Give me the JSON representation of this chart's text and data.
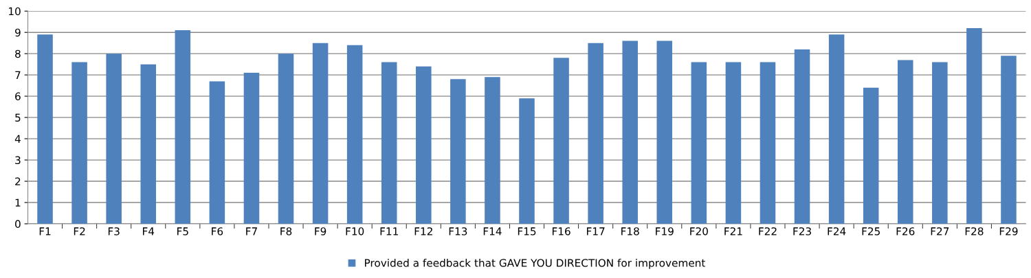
{
  "chart_data": {
    "type": "bar",
    "categories": [
      "F1",
      "F2",
      "F3",
      "F4",
      "F5",
      "F6",
      "F7",
      "F8",
      "F9",
      "F10",
      "F11",
      "F12",
      "F13",
      "F14",
      "F15",
      "F16",
      "F17",
      "F18",
      "F19",
      "F20",
      "F21",
      "F22",
      "F23",
      "F24",
      "F25",
      "F26",
      "F27",
      "F28",
      "F29"
    ],
    "series": [
      {
        "name": "Provided a feedback that GAVE YOU DIRECTION for improvement",
        "color": "#4f81bd",
        "values": [
          8.9,
          7.6,
          8.0,
          7.5,
          9.1,
          6.7,
          7.1,
          8.0,
          8.5,
          8.4,
          7.6,
          7.4,
          6.8,
          6.9,
          5.9,
          7.8,
          8.5,
          8.6,
          8.6,
          7.6,
          7.6,
          7.6,
          8.2,
          8.9,
          6.4,
          7.7,
          7.6,
          9.2,
          7.9
        ]
      }
    ],
    "ylim": [
      0,
      10
    ],
    "yticks": [
      0,
      1,
      2,
      3,
      4,
      5,
      6,
      7,
      8,
      9,
      10
    ],
    "grid": "y",
    "legend": "bottom"
  }
}
